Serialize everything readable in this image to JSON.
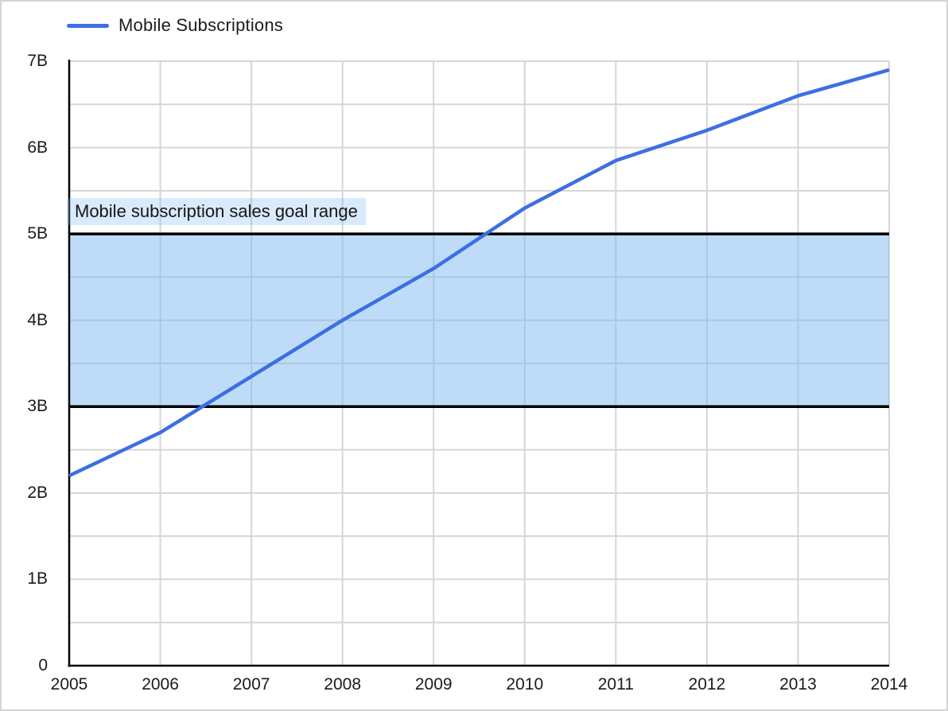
{
  "colors": {
    "line": "#3C6FE3",
    "grid": "#D6D6D6",
    "axis": "#000000",
    "band_fill": "rgba(125,185,241,0.5)",
    "band_border": "#000000",
    "annotation_bg": "rgba(125,185,241,0.3)",
    "text": "#1B1B1B",
    "page_border": "#D4D4D4",
    "background": "#FFFFFF"
  },
  "legend": {
    "series_label": "Mobile Subscriptions",
    "position": "top-left"
  },
  "chart_data": {
    "type": "line",
    "title": "",
    "xlabel": "",
    "ylabel": "",
    "x": [
      2005,
      2006,
      2007,
      2008,
      2009,
      2010,
      2011,
      2012,
      2013,
      2014
    ],
    "x_tick_labels": [
      "2005",
      "2006",
      "2007",
      "2008",
      "2009",
      "2010",
      "2011",
      "2012",
      "2013",
      "2014"
    ],
    "ylim": [
      0,
      7
    ],
    "y_major_ticks": [
      0,
      1,
      2,
      3,
      4,
      5,
      6,
      7
    ],
    "y_tick_labels": [
      "0",
      "1B",
      "2B",
      "3B",
      "4B",
      "5B",
      "6B",
      "7B"
    ],
    "y_minor_step": 0.5,
    "grid": true,
    "legend_position": "top-left",
    "series": [
      {
        "name": "Mobile Subscriptions",
        "color": "#3C6FE3",
        "values": [
          2.2,
          2.7,
          3.35,
          4.0,
          4.6,
          5.3,
          5.85,
          6.2,
          6.6,
          6.9
        ]
      }
    ],
    "band": {
      "from": 3.0,
      "to": 5.0,
      "label": "Mobile subscription sales goal range",
      "fill": "rgba(125,185,241,0.5)",
      "border_color": "#000000"
    }
  }
}
